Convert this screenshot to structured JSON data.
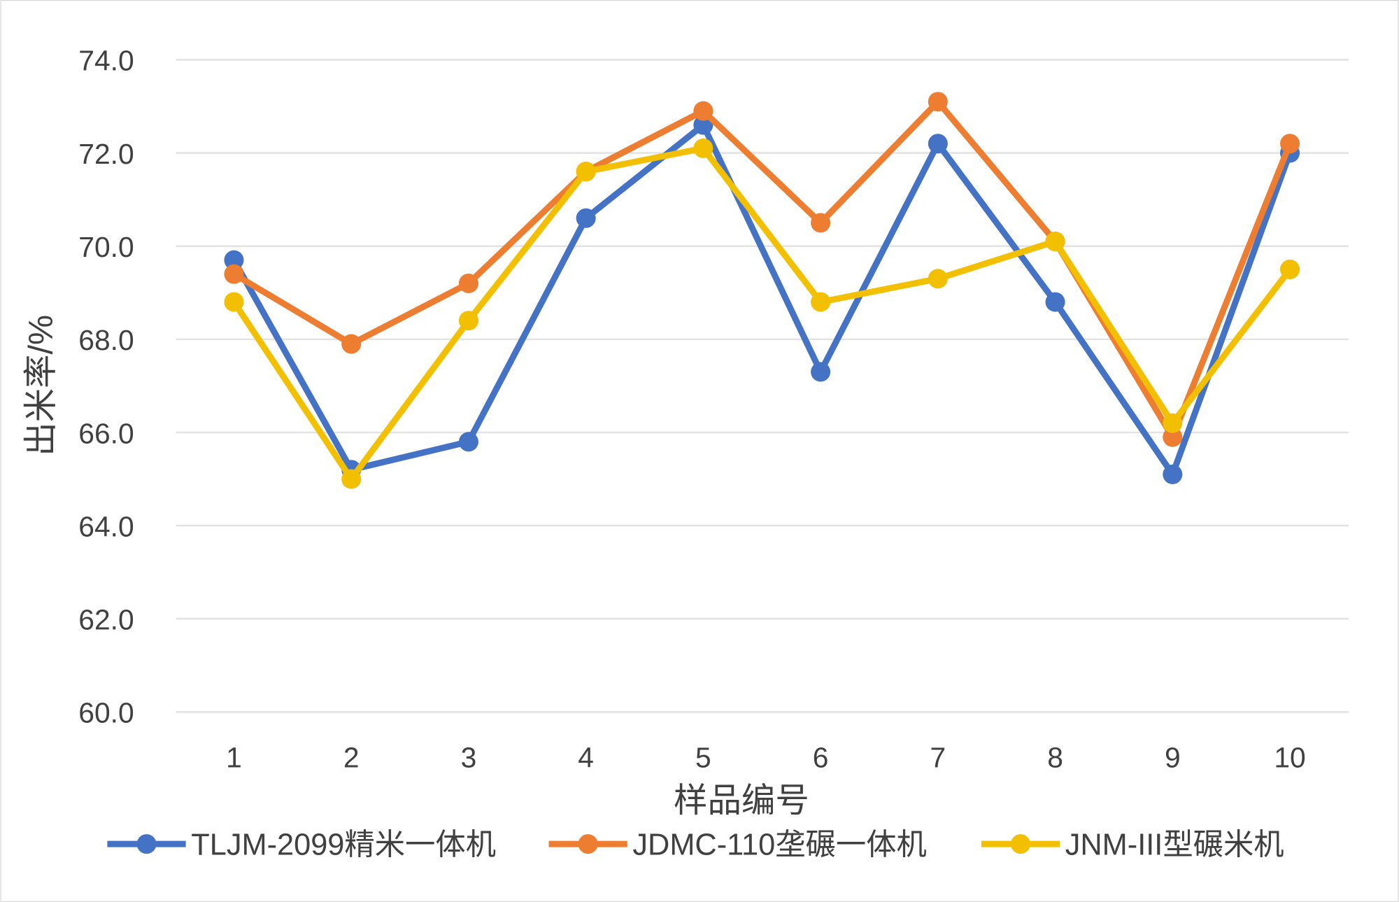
{
  "chart_data": {
    "type": "line",
    "title": "",
    "xlabel": "样品编号",
    "ylabel": "出米率/%",
    "categories": [
      "1",
      "2",
      "3",
      "4",
      "5",
      "6",
      "7",
      "8",
      "9",
      "10"
    ],
    "ylim": [
      60,
      74
    ],
    "yticks": [
      "60.0",
      "62.0",
      "64.0",
      "66.0",
      "68.0",
      "70.0",
      "72.0",
      "74.0"
    ],
    "grid": true,
    "legend_position": "bottom",
    "series": [
      {
        "name": "TLJM-2099精米一体机",
        "color": "#4472C4",
        "values": [
          69.7,
          65.2,
          65.8,
          70.6,
          72.6,
          67.3,
          72.2,
          68.8,
          65.1,
          72.0
        ]
      },
      {
        "name": "JDMC-110垄碾一体机",
        "color": "#ED7D31",
        "values": [
          69.4,
          67.9,
          69.2,
          71.6,
          72.9,
          70.5,
          73.1,
          70.1,
          65.9,
          72.2
        ]
      },
      {
        "name": "JNM-III型碾米机",
        "color": "#F2C000",
        "values": [
          68.8,
          65.0,
          68.4,
          71.6,
          72.1,
          68.8,
          69.3,
          70.1,
          66.2,
          69.5
        ]
      }
    ]
  }
}
